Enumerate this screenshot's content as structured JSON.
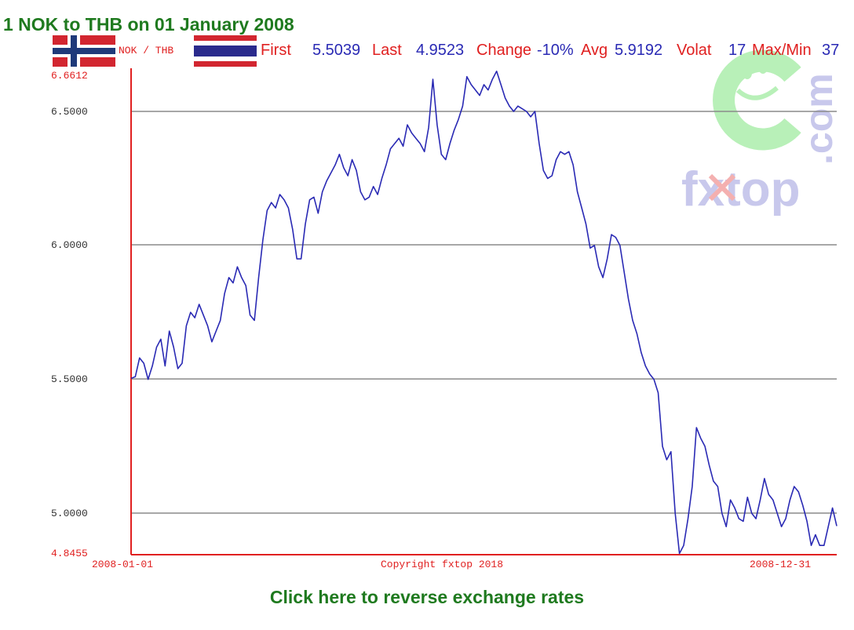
{
  "page": {
    "title": "1 NOK to THB on 01 January 2008",
    "reverse_link": "Click here to reverse exchange rates"
  },
  "header": {
    "pair_label": "NOK / THB",
    "stats": [
      {
        "label": "First",
        "value": "5.5039"
      },
      {
        "label": "Last",
        "value": "4.9523"
      },
      {
        "label": "Change",
        "value": "-10%"
      },
      {
        "label": "Avg",
        "value": "5.9192"
      },
      {
        "label": "Volat",
        "value": "17"
      },
      {
        "label": "Max/Min",
        "value": "37"
      }
    ]
  },
  "watermark": {
    "brand": "fxtop",
    "suffix": ".com"
  },
  "colors": {
    "title": "#1f7a1f",
    "series": "#2a2ab4",
    "axis": "#e02020",
    "label_red": "#e02020",
    "label_blue": "#2a2ab4",
    "grid": "#8a8a8a",
    "watermark_green": "#b8f0b8",
    "watermark_blue": "#c8c8ec",
    "watermark_red": "#f4b0b0"
  },
  "chart_data": {
    "type": "line",
    "x_tick_labels": [
      "2008-01-01",
      "2008-12-31"
    ],
    "y_tick_labels": [
      "6.6612",
      "6.5000",
      "6.0000",
      "5.5000",
      "5.0000",
      "4.8455"
    ],
    "copyright": "Copyright fxtop 2018",
    "ylim": [
      4.8455,
      6.6612
    ],
    "xlim": [
      "2008-01-01",
      "2008-12-31"
    ],
    "grid": true,
    "series": [
      {
        "values": [
          5.5039,
          5.51,
          5.58,
          5.56,
          5.5,
          5.55,
          5.62,
          5.65,
          5.55,
          5.68,
          5.62,
          5.54,
          5.56,
          5.7,
          5.75,
          5.73,
          5.78,
          5.74,
          5.7,
          5.64,
          5.68,
          5.72,
          5.82,
          5.88,
          5.86,
          5.92,
          5.88,
          5.85,
          5.74,
          5.72,
          5.88,
          6.02,
          6.13,
          6.16,
          6.14,
          6.19,
          6.17,
          6.14,
          6.06,
          5.95,
          5.95,
          6.08,
          6.17,
          6.18,
          6.12,
          6.2,
          6.24,
          6.27,
          6.3,
          6.34,
          6.29,
          6.26,
          6.32,
          6.28,
          6.2,
          6.17,
          6.18,
          6.22,
          6.19,
          6.25,
          6.3,
          6.36,
          6.38,
          6.4,
          6.37,
          6.45,
          6.42,
          6.4,
          6.38,
          6.35,
          6.44,
          6.62,
          6.45,
          6.34,
          6.32,
          6.38,
          6.43,
          6.47,
          6.52,
          6.63,
          6.6,
          6.58,
          6.56,
          6.6,
          6.58,
          6.62,
          6.65,
          6.6,
          6.55,
          6.52,
          6.5,
          6.52,
          6.51,
          6.5,
          6.48,
          6.5,
          6.38,
          6.28,
          6.25,
          6.26,
          6.32,
          6.35,
          6.34,
          6.35,
          6.3,
          6.2,
          6.14,
          6.08,
          5.99,
          6.0,
          5.92,
          5.88,
          5.95,
          6.04,
          6.03,
          6.0,
          5.9,
          5.8,
          5.72,
          5.67,
          5.6,
          5.55,
          5.52,
          5.5,
          5.45,
          5.25,
          5.2,
          5.23,
          5.0,
          4.85,
          4.88,
          4.98,
          5.1,
          5.32,
          5.28,
          5.25,
          5.18,
          5.12,
          5.1,
          5.0,
          4.95,
          5.05,
          5.02,
          4.98,
          4.97,
          5.06,
          5.0,
          4.98,
          5.05,
          5.13,
          5.07,
          5.05,
          5.0,
          4.95,
          4.98,
          5.05,
          5.1,
          5.08,
          5.03,
          4.97,
          4.88,
          4.92,
          4.88,
          4.88,
          4.95,
          5.02,
          4.9523
        ]
      }
    ]
  }
}
